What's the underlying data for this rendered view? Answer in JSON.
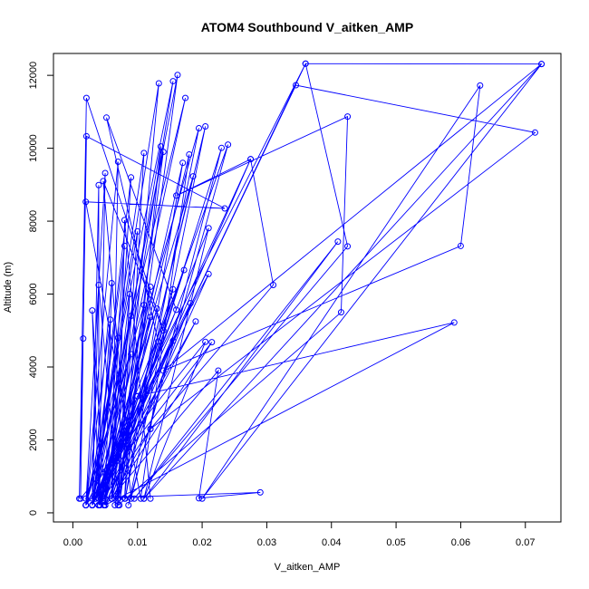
{
  "chart_data": {
    "type": "line",
    "title": "ATOM4 Southbound V_aitken_AMP",
    "xlabel": "V_aitken_AMP",
    "ylabel": "Altitude (m)",
    "xlim": [
      -0.003,
      0.0755
    ],
    "ylim": [
      -250,
      12600
    ],
    "xticks": [
      0.0,
      0.01,
      0.02,
      0.03,
      0.04,
      0.05,
      0.06,
      0.07
    ],
    "xtick_labels": [
      "0.00",
      "0.01",
      "0.02",
      "0.03",
      "0.04",
      "0.05",
      "0.06",
      "0.07"
    ],
    "yticks": [
      0,
      2000,
      4000,
      6000,
      8000,
      10000,
      12000
    ],
    "ytick_labels": [
      "0",
      "2000",
      "4000",
      "6000",
      "8000",
      "10000",
      "12000"
    ],
    "grid": false,
    "legend": "none",
    "color": "#0000ff",
    "series": [
      {
        "points": [
          [
            0.0016,
            4780
          ],
          [
            0.001,
            390
          ],
          [
            0.0021,
            11380
          ],
          [
            0.014,
            5000
          ],
          [
            0.0047,
            9100
          ],
          [
            0.009,
            390
          ],
          [
            0.023,
            10010
          ],
          [
            0.006,
            390
          ],
          [
            0.0132,
            4700
          ],
          [
            0.0052,
            10840
          ],
          [
            0.016,
            5570
          ],
          [
            0.0035,
            390
          ],
          [
            0.0162,
            12010
          ],
          [
            0.0072,
            210
          ],
          [
            0.0133,
            11780
          ],
          [
            0.003,
            210
          ],
          [
            0.0195,
            10550
          ],
          [
            0.0081,
            390
          ],
          [
            0.017,
            9600
          ],
          [
            0.005,
            310
          ],
          [
            0.0155,
            11840
          ],
          [
            0.002,
            210
          ],
          [
            0.0174,
            11380
          ],
          [
            0.004,
            390
          ],
          [
            0.0186,
            9230
          ],
          [
            0.0065,
            210
          ],
          [
            0.0205,
            10600
          ],
          [
            0.0086,
            210
          ],
          [
            0.024,
            10100
          ],
          [
            0.0042,
            210
          ],
          [
            0.019,
            5250
          ],
          [
            0.003,
            210
          ],
          [
            0.0275,
            9700
          ],
          [
            0.004,
            210
          ],
          [
            0.021,
            7810
          ],
          [
            0.011,
            390
          ],
          [
            0.0205,
            4690
          ],
          [
            0.0012,
            390
          ],
          [
            0.0021,
            10330
          ],
          [
            0.0235,
            8350
          ],
          [
            0.002,
            8530
          ],
          [
            0.0105,
            390
          ],
          [
            0.018,
            9830
          ],
          [
            0.0048,
            210
          ],
          [
            0.0155,
            6130
          ],
          [
            0.007,
            390
          ],
          [
            0.014,
            9900
          ],
          [
            0.003,
            210
          ],
          [
            0.0172,
            6660
          ],
          [
            0.006,
            390
          ],
          [
            0.0215,
            4680
          ],
          [
            0.002,
            210
          ],
          [
            0.021,
            6550
          ],
          [
            0.005,
            210
          ],
          [
            0.0155,
            4720
          ],
          [
            0.003,
            210
          ],
          [
            0.0182,
            5750
          ],
          [
            0.0065,
            390
          ],
          [
            0.012,
            5370
          ],
          [
            0.004,
            210
          ],
          [
            0.0136,
            10050
          ],
          [
            0.008,
            390
          ],
          [
            0.011,
            9870
          ],
          [
            0.003,
            210
          ],
          [
            0.009,
            9200
          ],
          [
            0.006,
            390
          ],
          [
            0.007,
            9630
          ],
          [
            0.002,
            210
          ],
          [
            0.005,
            9320
          ],
          [
            0.004,
            210
          ],
          [
            0.004,
            8990
          ],
          [
            0.003,
            390
          ],
          [
            0.006,
            6300
          ],
          [
            0.005,
            210
          ],
          [
            0.008,
            7320
          ],
          [
            0.003,
            210
          ],
          [
            0.01,
            7720
          ],
          [
            0.007,
            390
          ],
          [
            0.012,
            6200
          ],
          [
            0.004,
            210
          ],
          [
            0.013,
            5600
          ],
          [
            0.005,
            390
          ],
          [
            0.009,
            5400
          ],
          [
            0.003,
            210
          ],
          [
            0.007,
            4800
          ],
          [
            0.006,
            390
          ],
          [
            0.011,
            5700
          ],
          [
            0.002,
            210
          ],
          [
            0.0058,
            5300
          ],
          [
            0.004,
            390
          ],
          [
            0.003,
            5550
          ],
          [
            0.005,
            210
          ],
          [
            0.0088,
            6000
          ],
          [
            0.007,
            390
          ],
          [
            0.004,
            6250
          ],
          [
            0.003,
            210
          ],
          [
            0.01,
            3200
          ],
          [
            0.004,
            210
          ],
          [
            0.012,
            2300
          ],
          [
            0.006,
            390
          ],
          [
            0.009,
            4350
          ],
          [
            0.002,
            390
          ],
          [
            0.029,
            560
          ],
          [
            0.0195,
            400
          ],
          [
            0.0225,
            3900
          ],
          [
            0.005,
            210
          ],
          [
            0.059,
            5220
          ],
          [
            0.01,
            3200
          ],
          [
            0.036,
            12320
          ],
          [
            0.0425,
            7310
          ],
          [
            0.0095,
            390
          ],
          [
            0.041,
            7440
          ],
          [
            0.011,
            390
          ],
          [
            0.0725,
            12310
          ],
          [
            0.014,
            3900
          ],
          [
            0.06,
            7320
          ],
          [
            0.063,
            11720
          ],
          [
            0.02,
            390
          ],
          [
            0.0725,
            12310
          ],
          [
            0.036,
            12320
          ],
          [
            0.004,
            390
          ],
          [
            0.0345,
            11730
          ],
          [
            0.0715,
            10430
          ],
          [
            0.012,
            2300
          ],
          [
            0.031,
            6250
          ],
          [
            0.0275,
            9700
          ],
          [
            0.016,
            8700
          ],
          [
            0.0425,
            10870
          ],
          [
            0.0415,
            5500
          ],
          [
            0.007,
            210
          ],
          [
            0.008,
            8030
          ],
          [
            0.012,
            390
          ]
        ]
      }
    ]
  }
}
